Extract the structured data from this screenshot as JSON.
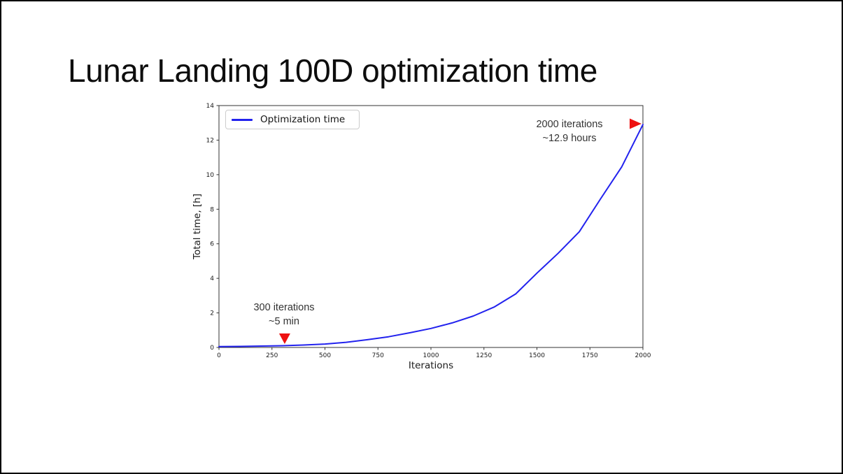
{
  "slide": {
    "title": "Lunar Landing 100D optimization time"
  },
  "chart_data": {
    "type": "line",
    "xlabel": "Iterations",
    "ylabel": "Total time, [h]",
    "xlim": [
      0,
      2000
    ],
    "ylim": [
      0,
      14
    ],
    "xticks": [
      0,
      250,
      500,
      750,
      1000,
      1250,
      1500,
      1750,
      2000
    ],
    "yticks": [
      0,
      2,
      4,
      6,
      8,
      10,
      12,
      14
    ],
    "grid": false,
    "legend": {
      "position": "upper-left",
      "entries": [
        {
          "label": "Optimization time",
          "color": "#2222ee"
        }
      ]
    },
    "series": [
      {
        "name": "Optimization time",
        "color": "#2222ee",
        "x": [
          0,
          100,
          200,
          300,
          400,
          500,
          600,
          700,
          800,
          900,
          1000,
          1100,
          1200,
          1300,
          1400,
          1500,
          1600,
          1700,
          1800,
          1900,
          2000
        ],
        "y": [
          0.05,
          0.06,
          0.08,
          0.1,
          0.14,
          0.2,
          0.3,
          0.45,
          0.62,
          0.85,
          1.1,
          1.42,
          1.82,
          2.35,
          3.1,
          4.3,
          5.45,
          6.7,
          8.6,
          10.45,
          12.9
        ]
      }
    ],
    "markers": [
      {
        "shape": "triangle-down",
        "color": "#ee1111",
        "x": 310,
        "y": 0.2
      },
      {
        "shape": "triangle-right",
        "color": "#ee1111",
        "x": 2000,
        "y": 12.95
      }
    ],
    "annotations": [
      {
        "lines": [
          "2000 iterations",
          "~12.9 hours"
        ],
        "near_x": 2000,
        "near_y": 12.9
      },
      {
        "lines": [
          "300 iterations",
          "~5 min"
        ],
        "near_x": 300,
        "near_y": 0.1
      }
    ]
  }
}
